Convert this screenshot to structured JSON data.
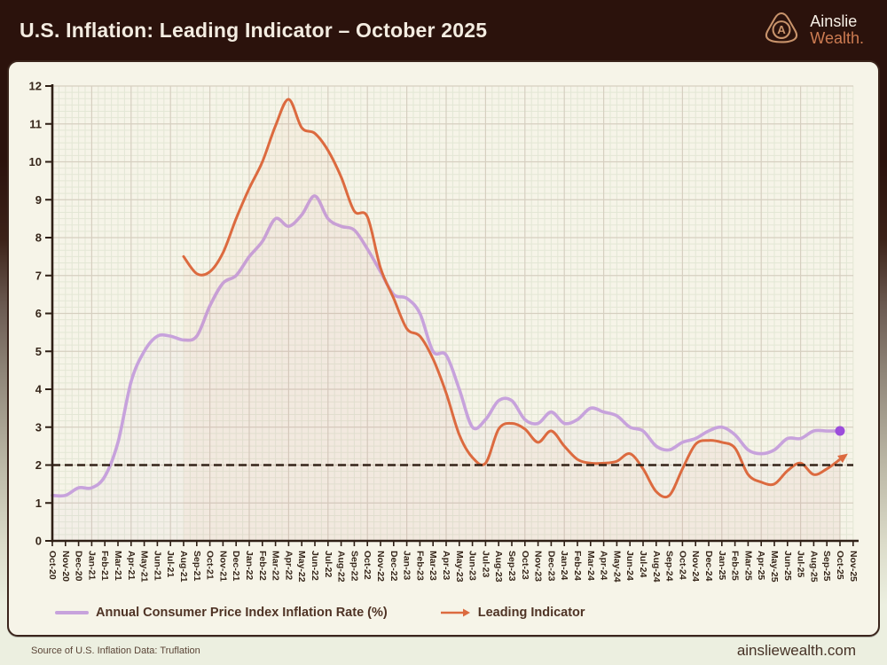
{
  "header": {
    "title": "U.S. Inflation: Leading Indicator – October 2025",
    "brand_top": "Ainslie",
    "brand_bottom": "Wealth.",
    "logo_letter": "A"
  },
  "legend": {
    "cpi_label": "Annual Consumer Price Index Inflation Rate (%)",
    "leading_label": "Leading Indicator"
  },
  "footer": {
    "source": "Source of U.S. Inflation Data: Truflation",
    "website": "ainsliewealth.com"
  },
  "colors": {
    "accent_purple": "#c7a2dc",
    "purple_dot": "#9c4ddb",
    "accent_orange": "#dc6a3f",
    "target_line": "#342319",
    "axis": "#2e1f15",
    "tick_text": "#36261a",
    "grid_minor": "#e3e7d5",
    "grid_major": "#d6cfc0",
    "brand_copper": "#c8936b"
  },
  "chart_data": {
    "type": "line",
    "title": "U.S. Inflation: Leading Indicator – October 2025",
    "xlabel": "",
    "ylabel": "",
    "ylim": [
      0,
      12
    ],
    "y_ticks": [
      0,
      1,
      2,
      3,
      4,
      5,
      6,
      7,
      8,
      9,
      10,
      11,
      12
    ],
    "target_line_y": 2,
    "grid": true,
    "legend_position": "bottom",
    "x_labels": [
      "Oct-20",
      "Nov-20",
      "Dec-20",
      "Jan-21",
      "Feb-21",
      "Mar-21",
      "Apr-21",
      "May-21",
      "Jun-21",
      "Jul-21",
      "Aug-21",
      "Sep-21",
      "Oct-21",
      "Nov-21",
      "Dec-21",
      "Jan-22",
      "Feb-22",
      "Mar-22",
      "Apr-22",
      "May-22",
      "Jun-22",
      "Jul-22",
      "Aug-22",
      "Sep-22",
      "Oct-22",
      "Nov-22",
      "Dec-22",
      "Jan-23",
      "Feb-23",
      "Mar-23",
      "Apr-23",
      "May-23",
      "Jun-23",
      "Jul-23",
      "Aug-23",
      "Sep-23",
      "Oct-23",
      "Nov-23",
      "Dec-23",
      "Jan-24",
      "Feb-24",
      "Mar-24",
      "Apr-24",
      "May-24",
      "Jun-24",
      "Jul-24",
      "Aug-24",
      "Sep-24",
      "Oct-24",
      "Nov-24",
      "Dec-24",
      "Jan-25",
      "Feb-25",
      "Mar-25",
      "Apr-25",
      "May-25",
      "Jun-25",
      "Jul-25",
      "Aug-25",
      "Sep-25",
      "Oct-25",
      "Nov-25"
    ],
    "series": [
      {
        "name": "Annual Consumer Price Index Inflation Rate (%)",
        "color": "#c7a2dc",
        "start_index": 0,
        "end_marker": "dot",
        "values": [
          1.2,
          1.2,
          1.4,
          1.4,
          1.7,
          2.6,
          4.2,
          5.0,
          5.4,
          5.4,
          5.3,
          5.4,
          6.2,
          6.8,
          7.0,
          7.5,
          7.9,
          8.5,
          8.3,
          8.6,
          9.1,
          8.5,
          8.3,
          8.2,
          7.7,
          7.1,
          6.5,
          6.4,
          6.0,
          5.0,
          4.9,
          4.0,
          3.0,
          3.2,
          3.7,
          3.7,
          3.2,
          3.1,
          3.4,
          3.1,
          3.2,
          3.5,
          3.4,
          3.3,
          3.0,
          2.9,
          2.5,
          2.4,
          2.6,
          2.7,
          2.9,
          3.0,
          2.8,
          2.4,
          2.3,
          2.4,
          2.7,
          2.7,
          2.9,
          2.9,
          2.9
        ]
      },
      {
        "name": "Leading Indicator",
        "color": "#dc6a3f",
        "start_index": 10,
        "end_marker": "arrow",
        "values": [
          7.5,
          7.05,
          7.1,
          7.6,
          8.5,
          9.3,
          10.0,
          10.95,
          11.65,
          10.9,
          10.75,
          10.3,
          9.6,
          8.7,
          8.55,
          7.2,
          6.4,
          5.6,
          5.4,
          4.8,
          3.9,
          2.8,
          2.2,
          2.05,
          2.95,
          3.1,
          2.95,
          2.6,
          2.9,
          2.5,
          2.15,
          2.05,
          2.05,
          2.1,
          2.3,
          1.9,
          1.3,
          1.2,
          1.9,
          2.55,
          2.65,
          2.6,
          2.45,
          1.75,
          1.55,
          1.5,
          1.85,
          2.05,
          1.75,
          1.9,
          2.15
        ]
      }
    ]
  }
}
